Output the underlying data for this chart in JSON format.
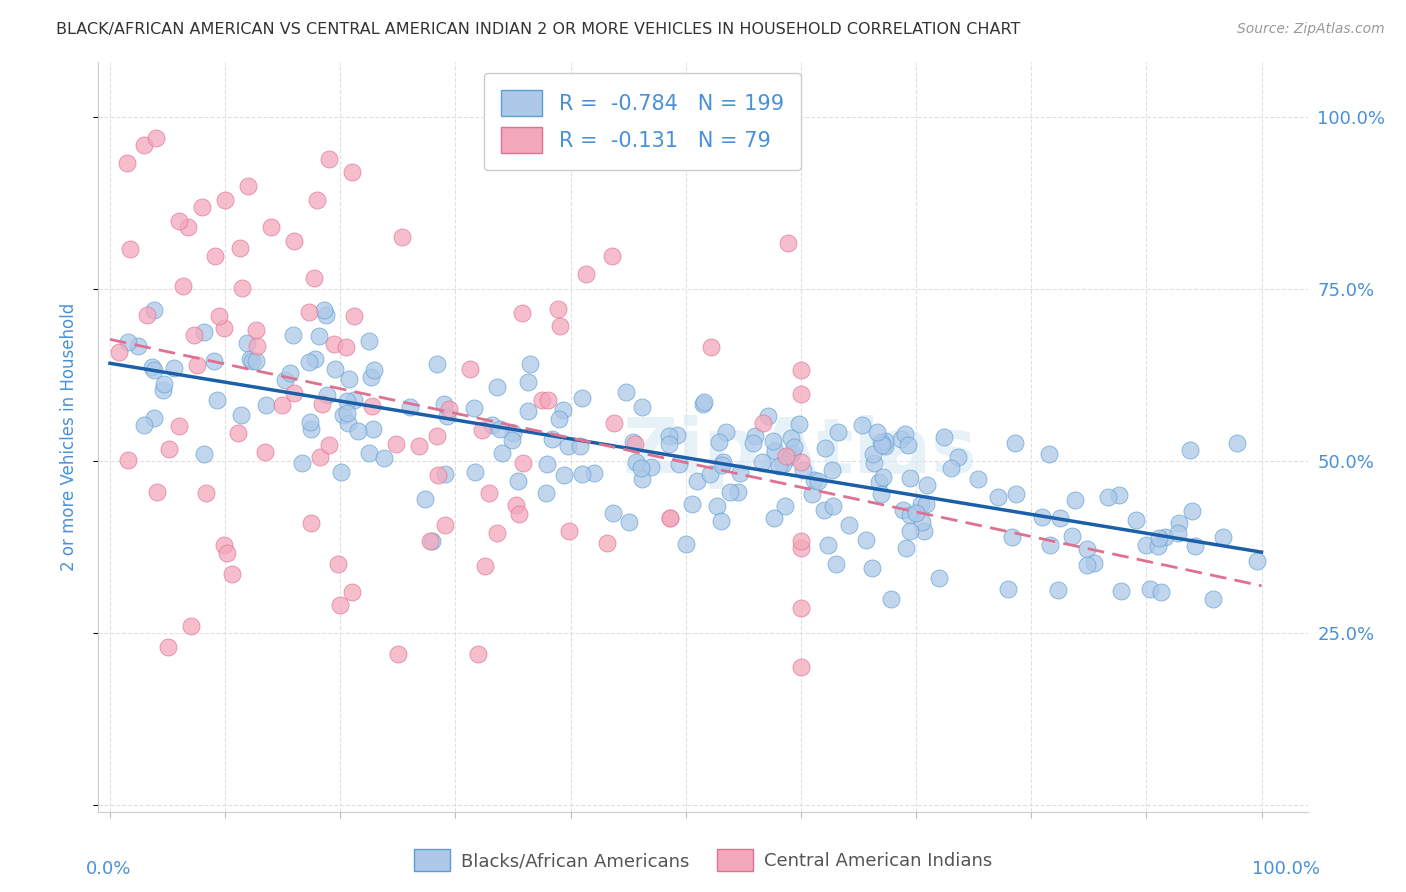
{
  "title": "BLACK/AFRICAN AMERICAN VS CENTRAL AMERICAN INDIAN 2 OR MORE VEHICLES IN HOUSEHOLD CORRELATION CHART",
  "source": "Source: ZipAtlas.com",
  "ylabel": "2 or more Vehicles in Household",
  "blue_R": -0.784,
  "blue_N": 199,
  "pink_R": -0.131,
  "pink_N": 79,
  "blue_color": "#adc8e8",
  "blue_edge_color": "#5a9fd4",
  "blue_line_color": "#1a5fa8",
  "pink_color": "#f4a8bc",
  "pink_edge_color": "#e07090",
  "pink_line_color": "#e07090",
  "title_color": "#333333",
  "source_color": "#999999",
  "axis_label_color": "#4a90d9",
  "tick_color": "#4a90d9",
  "legend_text_color": "#4a90d9",
  "background_color": "#ffffff",
  "grid_color": "#dddddd",
  "watermark": "ZipAtlas",
  "legend2_text_color": "#555555"
}
